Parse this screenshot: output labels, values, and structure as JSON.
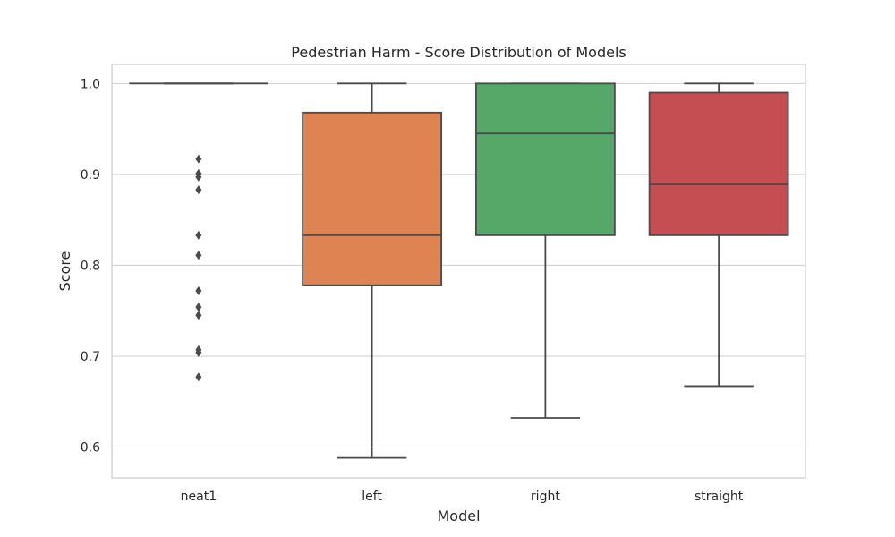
{
  "chart_data": {
    "type": "box",
    "title": "Pedestrian Harm - Score Distribution of Models",
    "xlabel": "Model",
    "ylabel": "Score",
    "ylim": [
      0.566,
      1.021
    ],
    "yticks": [
      0.6,
      0.7,
      0.8,
      0.9,
      1.0
    ],
    "ytick_labels": [
      "0.6",
      "0.7",
      "0.8",
      "0.9",
      "1.0"
    ],
    "grid": true,
    "categories": [
      "neat1",
      "left",
      "right",
      "straight"
    ],
    "boxes": [
      {
        "name": "neat1",
        "color": "#4c72b0",
        "whisker_low": 1.0,
        "q1": 1.0,
        "median": 1.0,
        "q3": 1.0,
        "whisker_high": 1.0,
        "outliers": [
          0.917,
          0.901,
          0.897,
          0.883,
          0.833,
          0.811,
          0.772,
          0.754,
          0.745,
          0.707,
          0.704,
          0.677
        ]
      },
      {
        "name": "left",
        "color": "#dd8452",
        "whisker_low": 0.588,
        "q1": 0.778,
        "median": 0.833,
        "q3": 0.968,
        "whisker_high": 1.0,
        "outliers": []
      },
      {
        "name": "right",
        "color": "#55a868",
        "whisker_low": 0.632,
        "q1": 0.833,
        "median": 0.945,
        "q3": 1.0,
        "whisker_high": 1.0,
        "outliers": []
      },
      {
        "name": "straight",
        "color": "#c44e52",
        "whisker_low": 0.667,
        "q1": 0.833,
        "median": 0.889,
        "q3": 0.99,
        "whisker_high": 1.0,
        "outliers": []
      }
    ]
  }
}
